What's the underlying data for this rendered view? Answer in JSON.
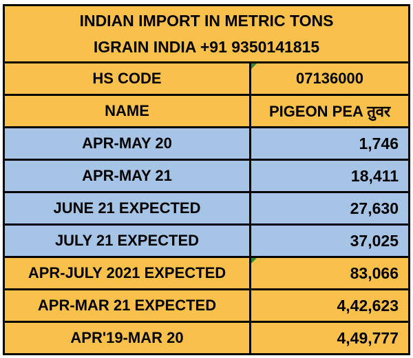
{
  "table": {
    "title": [
      "INDIAN IMPORT IN METRIC TONS",
      "IGRAIN INDIA +91 9350141815"
    ],
    "header": [
      [
        "HS CODE",
        "07136000"
      ],
      [
        "NAME",
        "PIGEON PEA तुवर"
      ]
    ],
    "rows": [
      [
        "APR-MAY 20",
        "1,746"
      ],
      [
        "APR-MAY 21",
        "18,411"
      ],
      [
        "JUNE 21 EXPECTED",
        "27,630"
      ],
      [
        "JULY 21 EXPECTED",
        "37,025"
      ],
      [
        "APR-JULY 2021 EXPECTED",
        "83,066"
      ],
      [
        "APR-MAR 21 EXPECTED",
        "4,42,623"
      ],
      [
        "APR'19-MAR 20",
        "4,49,777"
      ]
    ]
  }
}
